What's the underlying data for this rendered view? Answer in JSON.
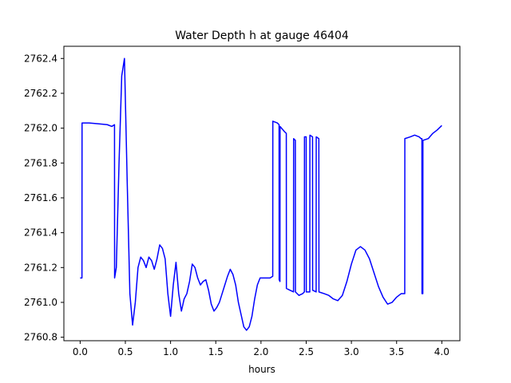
{
  "chart_data": {
    "type": "line",
    "title": "Water Depth h at gauge 46404",
    "xlabel": "hours",
    "ylabel": "",
    "xlim": [
      -0.18,
      4.2
    ],
    "ylim": [
      2760.78,
      2762.47
    ],
    "xticks": [
      0.0,
      0.5,
      1.0,
      1.5,
      2.0,
      2.5,
      3.0,
      3.5,
      4.0
    ],
    "xtick_labels": [
      "0.0",
      "0.5",
      "1.0",
      "1.5",
      "2.0",
      "2.5",
      "3.0",
      "3.5",
      "4.0"
    ],
    "yticks": [
      2760.8,
      2761.0,
      2761.2,
      2761.4,
      2761.6,
      2761.8,
      2762.0,
      2762.2,
      2762.4
    ],
    "ytick_labels": [
      "2760.8",
      "2761.0",
      "2761.2",
      "2761.4",
      "2761.6",
      "2761.8",
      "2762.0",
      "2762.2",
      "2762.4"
    ],
    "grid": false,
    "series": [
      {
        "color": "#0000ff",
        "x": [
          0.0,
          0.02,
          0.021,
          0.1,
          0.2,
          0.3,
          0.35,
          0.38,
          0.381,
          0.4,
          0.43,
          0.46,
          0.49,
          0.52,
          0.55,
          0.58,
          0.61,
          0.64,
          0.67,
          0.7,
          0.73,
          0.76,
          0.79,
          0.82,
          0.85,
          0.88,
          0.91,
          0.94,
          0.97,
          1.0,
          1.03,
          1.06,
          1.09,
          1.12,
          1.15,
          1.18,
          1.21,
          1.24,
          1.27,
          1.3,
          1.33,
          1.36,
          1.39,
          1.42,
          1.45,
          1.48,
          1.51,
          1.54,
          1.57,
          1.6,
          1.63,
          1.66,
          1.69,
          1.72,
          1.75,
          1.78,
          1.81,
          1.84,
          1.87,
          1.9,
          1.93,
          1.96,
          1.99,
          2.02,
          2.05,
          2.1,
          2.13,
          2.131,
          2.18,
          2.2,
          2.201,
          2.21,
          2.211,
          2.26,
          2.28,
          2.281,
          2.32,
          2.36,
          2.361,
          2.38,
          2.381,
          2.42,
          2.46,
          2.48,
          2.481,
          2.5,
          2.501,
          2.54,
          2.541,
          2.57,
          2.571,
          2.61,
          2.611,
          2.64,
          2.641,
          2.7,
          2.75,
          2.8,
          2.85,
          2.9,
          2.95,
          3.0,
          3.05,
          3.1,
          3.15,
          3.2,
          3.25,
          3.3,
          3.35,
          3.4,
          3.45,
          3.5,
          3.55,
          3.59,
          3.591,
          3.65,
          3.7,
          3.75,
          3.77,
          3.78,
          3.781,
          3.79,
          3.791,
          3.85,
          3.9,
          3.95,
          4.0
        ],
        "y": [
          2761.14,
          2761.14,
          2762.03,
          2762.03,
          2762.025,
          2762.02,
          2762.01,
          2762.02,
          2761.14,
          2761.2,
          2761.8,
          2762.3,
          2762.4,
          2761.7,
          2761.05,
          2760.87,
          2761.0,
          2761.2,
          2761.26,
          2761.24,
          2761.2,
          2761.26,
          2761.24,
          2761.19,
          2761.25,
          2761.33,
          2761.31,
          2761.25,
          2761.05,
          2760.92,
          2761.1,
          2761.23,
          2761.05,
          2760.95,
          2761.02,
          2761.05,
          2761.12,
          2761.22,
          2761.2,
          2761.14,
          2761.1,
          2761.12,
          2761.13,
          2761.07,
          2760.99,
          2760.95,
          2760.97,
          2761.0,
          2761.05,
          2761.1,
          2761.15,
          2761.19,
          2761.16,
          2761.1,
          2761.0,
          2760.93,
          2760.86,
          2760.84,
          2760.86,
          2760.92,
          2761.02,
          2761.1,
          2761.14,
          2761.14,
          2761.14,
          2761.14,
          2761.15,
          2762.04,
          2762.03,
          2762.02,
          2761.13,
          2761.12,
          2762.01,
          2761.98,
          2761.97,
          2761.08,
          2761.07,
          2761.06,
          2761.94,
          2761.93,
          2761.06,
          2761.04,
          2761.05,
          2761.06,
          2761.95,
          2761.95,
          2761.06,
          2761.06,
          2761.96,
          2761.95,
          2761.07,
          2761.06,
          2761.95,
          2761.94,
          2761.06,
          2761.05,
          2761.04,
          2761.02,
          2761.01,
          2761.04,
          2761.12,
          2761.22,
          2761.3,
          2761.32,
          2761.3,
          2761.25,
          2761.17,
          2761.09,
          2761.03,
          2760.99,
          2761.0,
          2761.03,
          2761.05,
          2761.05,
          2761.94,
          2761.95,
          2761.96,
          2761.95,
          2761.94,
          2761.94,
          2761.05,
          2761.05,
          2761.93,
          2761.94,
          2761.97,
          2761.99,
          2762.015
        ]
      }
    ]
  }
}
